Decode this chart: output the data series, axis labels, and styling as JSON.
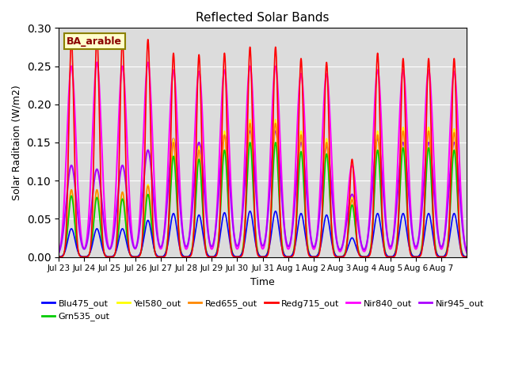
{
  "title": "Reflected Solar Bands",
  "xlabel": "Time",
  "ylabel": "Solar Raditaion (W/m2)",
  "annotation": "BA_arable",
  "ylim": [
    0,
    0.3
  ],
  "background_color": "#dcdcdc",
  "series": {
    "Blu475_out": {
      "color": "#0000ff",
      "lw": 1.2
    },
    "Grn535_out": {
      "color": "#00cc00",
      "lw": 1.2
    },
    "Yel580_out": {
      "color": "#ffff00",
      "lw": 1.2
    },
    "Red655_out": {
      "color": "#ff8800",
      "lw": 1.2
    },
    "Redg715_out": {
      "color": "#ff0000",
      "lw": 1.2
    },
    "Nir840_out": {
      "color": "#ff00ff",
      "lw": 1.5
    },
    "Nir945_out": {
      "color": "#aa00ff",
      "lw": 1.5
    }
  },
  "tick_labels": [
    "Jul 23",
    "Jul 24",
    "Jul 25",
    "Jul 26",
    "Jul 27",
    "Jul 28",
    "Jul 29",
    "Jul 30",
    "Jul 31",
    "Aug 1",
    "Aug 2",
    "Aug 3",
    "Aug 4",
    "Aug 5",
    "Aug 6",
    "Aug 7"
  ],
  "day_peaks_blu": [
    0.037,
    0.037,
    0.037,
    0.048,
    0.057,
    0.055,
    0.058,
    0.06,
    0.06,
    0.057,
    0.055,
    0.025,
    0.057,
    0.057,
    0.057,
    0.057
  ],
  "day_peaks_redg": [
    0.285,
    0.29,
    0.285,
    0.285,
    0.267,
    0.265,
    0.267,
    0.275,
    0.275,
    0.26,
    0.255,
    0.128,
    0.267,
    0.26,
    0.26,
    0.26
  ],
  "day_peaks_nir840": [
    0.25,
    0.255,
    0.25,
    0.255,
    0.245,
    0.243,
    0.245,
    0.25,
    0.25,
    0.24,
    0.24,
    0.12,
    0.245,
    0.245,
    0.245,
    0.243
  ],
  "day_peaks_nir945": [
    0.12,
    0.115,
    0.12,
    0.14,
    0.155,
    0.15,
    0.16,
    0.165,
    0.165,
    0.15,
    0.145,
    0.082,
    0.155,
    0.15,
    0.15,
    0.15
  ],
  "day_peaks_yel": [
    0.088,
    0.088,
    0.085,
    0.095,
    0.155,
    0.145,
    0.165,
    0.18,
    0.18,
    0.165,
    0.155,
    0.078,
    0.165,
    0.17,
    0.17,
    0.168
  ],
  "day_peaks_red": [
    0.088,
    0.088,
    0.085,
    0.093,
    0.15,
    0.14,
    0.16,
    0.175,
    0.175,
    0.16,
    0.15,
    0.075,
    0.16,
    0.165,
    0.165,
    0.163
  ],
  "day_peaks_grn": [
    0.08,
    0.078,
    0.076,
    0.082,
    0.132,
    0.128,
    0.14,
    0.15,
    0.15,
    0.138,
    0.135,
    0.068,
    0.14,
    0.143,
    0.143,
    0.14
  ]
}
